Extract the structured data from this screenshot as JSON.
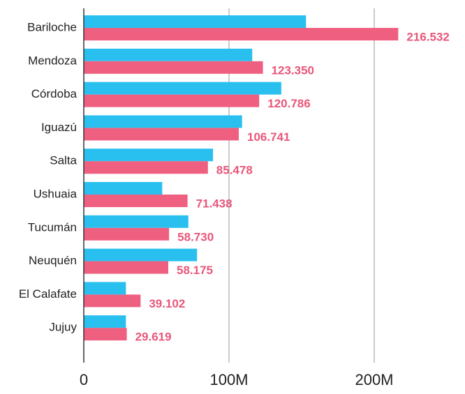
{
  "chart_data": {
    "type": "bar",
    "orientation": "horizontal",
    "categories": [
      "Bariloche",
      "Mendoza",
      "Córdoba",
      "Iguazú",
      "Salta",
      "Ushuaia",
      "Tucumán",
      "Neuquén",
      "El Calafate",
      "Jujuy"
    ],
    "series": [
      {
        "color": "#29c0ef",
        "values": [
          153,
          116,
          136,
          109,
          89,
          54,
          72,
          78,
          29,
          29
        ]
      },
      {
        "color": "#ef5f80",
        "values": [
          216.532,
          123.35,
          120.786,
          106.741,
          85.478,
          71.438,
          58.73,
          58.175,
          39.102,
          29.619
        ],
        "value_labels": [
          "216.532",
          "123.350",
          "120.786",
          "106.741",
          "85.478",
          "71.438",
          "58.730",
          "58.175",
          "39.102",
          "29.619"
        ]
      }
    ],
    "xlim": [
      0,
      260
    ],
    "xticks": [
      0,
      {
        "value": 100,
        "label": "100M"
      },
      {
        "value": 200,
        "label": "200M"
      }
    ],
    "grid": true
  }
}
